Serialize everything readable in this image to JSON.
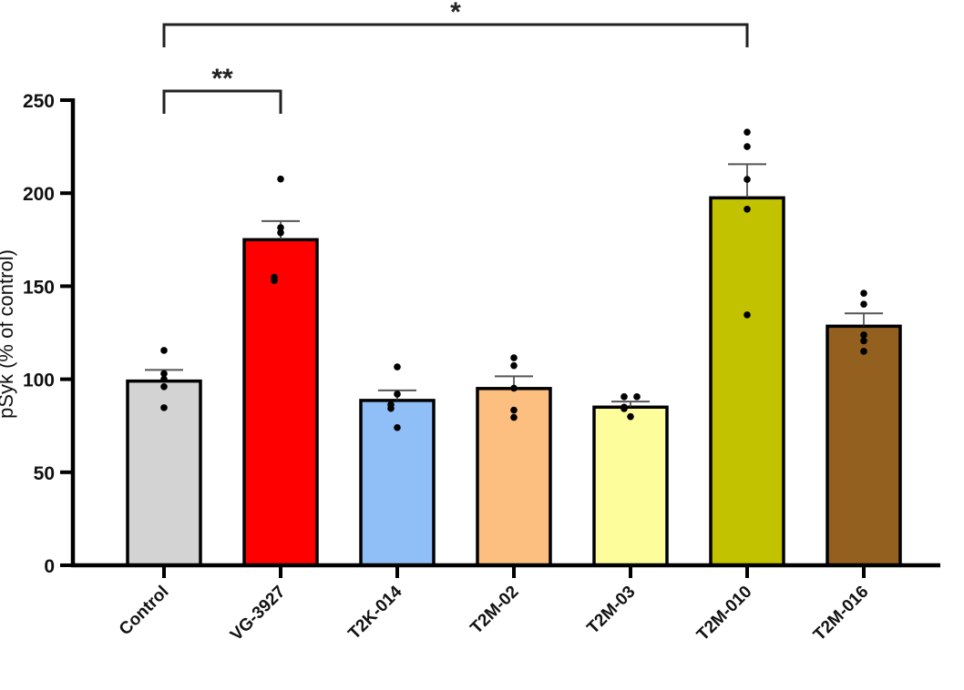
{
  "chart_data": {
    "type": "bar",
    "title": "",
    "xlabel": "",
    "ylabel": "pSyk (% of control)",
    "ylim": [
      0,
      250
    ],
    "yticks": [
      0,
      50,
      100,
      150,
      200,
      250
    ],
    "grid": false,
    "categories": [
      "Control",
      "VG-3927",
      "T2K-014",
      "T2M-02",
      "T2M-03",
      "T2M-010",
      "T2M-016"
    ],
    "values": [
      99,
      175,
      88.6,
      95,
      85,
      197.5,
      128.5
    ],
    "error_upper": [
      105,
      185,
      94,
      101.6,
      88,
      215.6,
      135.4
    ],
    "points": [
      [
        115.5,
        103,
        100,
        96,
        84.7
      ],
      [
        207.6,
        181.5,
        178.7,
        154.8,
        153
      ],
      [
        106.6,
        92,
        86.3,
        84.3,
        74
      ],
      [
        111.5,
        107.3,
        95.2,
        83.4,
        79.5
      ],
      [
        90.6,
        90.6,
        85,
        84.2,
        79.9
      ],
      [
        232.8,
        225,
        207.4,
        191.4,
        134.6
      ],
      [
        146.2,
        140.3,
        123.8,
        120.6,
        115
      ]
    ],
    "colors": [
      "#d3d3d3",
      "#ff0000",
      "#90bff8",
      "#fdbf80",
      "#fdfd9c",
      "#c2c200",
      "#93601f"
    ],
    "significance": [
      {
        "from": "Control",
        "to": "VG-3927",
        "label": "**"
      },
      {
        "from": "Control",
        "to": "T2M-010",
        "label": "*"
      }
    ]
  }
}
